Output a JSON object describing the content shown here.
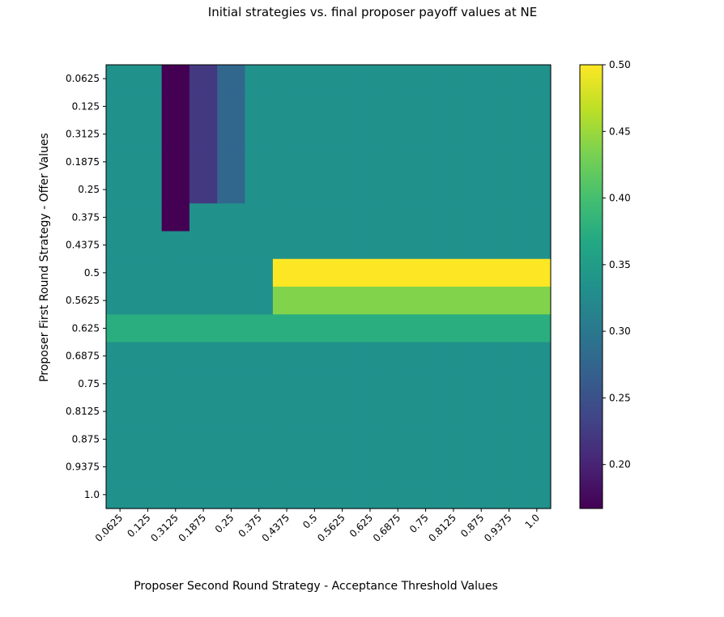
{
  "chart_data": {
    "type": "heatmap",
    "title": "Initial strategies vs. final proposer payoff values at NE",
    "xlabel": "Proposer Second Round Strategy - Acceptance Threshold Values",
    "ylabel": "Proposer First Round Strategy - Offer Values",
    "x_categories": [
      "0.0625",
      "0.125",
      "0.3125",
      "0.1875",
      "0.25",
      "0.375",
      "0.4375",
      "0.5",
      "0.5625",
      "0.625",
      "0.6875",
      "0.75",
      "0.8125",
      "0.875",
      "0.9375",
      "1.0"
    ],
    "y_categories": [
      "0.0625",
      "0.125",
      "0.3125",
      "0.1875",
      "0.25",
      "0.375",
      "0.4375",
      "0.5",
      "0.5625",
      "0.625",
      "0.6875",
      "0.75",
      "0.8125",
      "0.875",
      "0.9375",
      "1.0"
    ],
    "values": [
      [
        0.333,
        0.333,
        0.167,
        0.222,
        0.278,
        0.333,
        0.333,
        0.333,
        0.333,
        0.333,
        0.333,
        0.333,
        0.333,
        0.333,
        0.333,
        0.333
      ],
      [
        0.333,
        0.333,
        0.167,
        0.222,
        0.278,
        0.333,
        0.333,
        0.333,
        0.333,
        0.333,
        0.333,
        0.333,
        0.333,
        0.333,
        0.333,
        0.333
      ],
      [
        0.333,
        0.333,
        0.167,
        0.222,
        0.278,
        0.333,
        0.333,
        0.333,
        0.333,
        0.333,
        0.333,
        0.333,
        0.333,
        0.333,
        0.333,
        0.333
      ],
      [
        0.333,
        0.333,
        0.167,
        0.222,
        0.278,
        0.333,
        0.333,
        0.333,
        0.333,
        0.333,
        0.333,
        0.333,
        0.333,
        0.333,
        0.333,
        0.333
      ],
      [
        0.333,
        0.333,
        0.167,
        0.222,
        0.278,
        0.333,
        0.333,
        0.333,
        0.333,
        0.333,
        0.333,
        0.333,
        0.333,
        0.333,
        0.333,
        0.333
      ],
      [
        0.333,
        0.333,
        0.167,
        0.333,
        0.333,
        0.333,
        0.333,
        0.333,
        0.333,
        0.333,
        0.333,
        0.333,
        0.333,
        0.333,
        0.333,
        0.333
      ],
      [
        0.333,
        0.333,
        0.333,
        0.333,
        0.333,
        0.333,
        0.333,
        0.333,
        0.333,
        0.333,
        0.333,
        0.333,
        0.333,
        0.333,
        0.333,
        0.333
      ],
      [
        0.333,
        0.333,
        0.333,
        0.333,
        0.333,
        0.333,
        0.5,
        0.5,
        0.5,
        0.5,
        0.5,
        0.5,
        0.5,
        0.5,
        0.5,
        0.5
      ],
      [
        0.333,
        0.333,
        0.333,
        0.333,
        0.333,
        0.333,
        0.4375,
        0.4375,
        0.4375,
        0.4375,
        0.4375,
        0.4375,
        0.4375,
        0.4375,
        0.4375,
        0.4375
      ],
      [
        0.375,
        0.375,
        0.375,
        0.375,
        0.375,
        0.375,
        0.375,
        0.375,
        0.375,
        0.375,
        0.375,
        0.375,
        0.375,
        0.375,
        0.375,
        0.375
      ],
      [
        0.333,
        0.333,
        0.333,
        0.333,
        0.333,
        0.333,
        0.333,
        0.333,
        0.333,
        0.333,
        0.333,
        0.333,
        0.333,
        0.333,
        0.333,
        0.333
      ],
      [
        0.333,
        0.333,
        0.333,
        0.333,
        0.333,
        0.333,
        0.333,
        0.333,
        0.333,
        0.333,
        0.333,
        0.333,
        0.333,
        0.333,
        0.333,
        0.333
      ],
      [
        0.333,
        0.333,
        0.333,
        0.333,
        0.333,
        0.333,
        0.333,
        0.333,
        0.333,
        0.333,
        0.333,
        0.333,
        0.333,
        0.333,
        0.333,
        0.333
      ],
      [
        0.333,
        0.333,
        0.333,
        0.333,
        0.333,
        0.333,
        0.333,
        0.333,
        0.333,
        0.333,
        0.333,
        0.333,
        0.333,
        0.333,
        0.333,
        0.333
      ],
      [
        0.333,
        0.333,
        0.333,
        0.333,
        0.333,
        0.333,
        0.333,
        0.333,
        0.333,
        0.333,
        0.333,
        0.333,
        0.333,
        0.333,
        0.333,
        0.333
      ],
      [
        0.333,
        0.333,
        0.333,
        0.333,
        0.333,
        0.333,
        0.333,
        0.333,
        0.333,
        0.333,
        0.333,
        0.333,
        0.333,
        0.333,
        0.333,
        0.333
      ]
    ],
    "colorscale": "viridis",
    "vmin": 0.167,
    "vmax": 0.5,
    "colorbar_ticks": [
      "0.20",
      "0.25",
      "0.30",
      "0.35",
      "0.40",
      "0.45",
      "0.50"
    ]
  }
}
